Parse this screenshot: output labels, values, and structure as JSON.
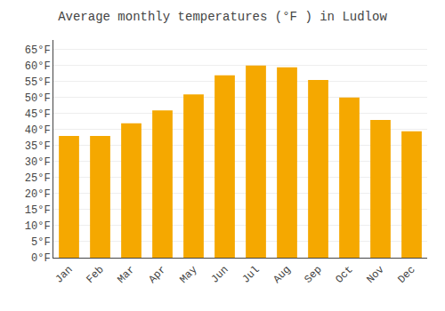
{
  "chart_data": {
    "type": "bar",
    "title": "Average monthly temperatures (°F ) in Ludlow",
    "categories": [
      "Jan",
      "Feb",
      "Mar",
      "Apr",
      "May",
      "Jun",
      "Jul",
      "Aug",
      "Sep",
      "Oct",
      "Nov",
      "Dec"
    ],
    "values": [
      38,
      38,
      42,
      46,
      51,
      57,
      60,
      59.5,
      55.5,
      50,
      43,
      39.5
    ],
    "color": "#F5A800",
    "ylim": [
      0,
      68
    ],
    "yticks": [
      {
        "value": 0,
        "label": "0°F"
      },
      {
        "value": 5,
        "label": "5°F"
      },
      {
        "value": 10,
        "label": "10°F"
      },
      {
        "value": 15,
        "label": "15°F"
      },
      {
        "value": 20,
        "label": "20°F"
      },
      {
        "value": 25,
        "label": "25°F"
      },
      {
        "value": 30,
        "label": "30°F"
      },
      {
        "value": 35,
        "label": "35°F"
      },
      {
        "value": 40,
        "label": "40°F"
      },
      {
        "value": 45,
        "label": "45°F"
      },
      {
        "value": 50,
        "label": "50°F"
      },
      {
        "value": 55,
        "label": "55°F"
      },
      {
        "value": 60,
        "label": "60°F"
      },
      {
        "value": 65,
        "label": "65°F"
      }
    ],
    "grid": true
  }
}
